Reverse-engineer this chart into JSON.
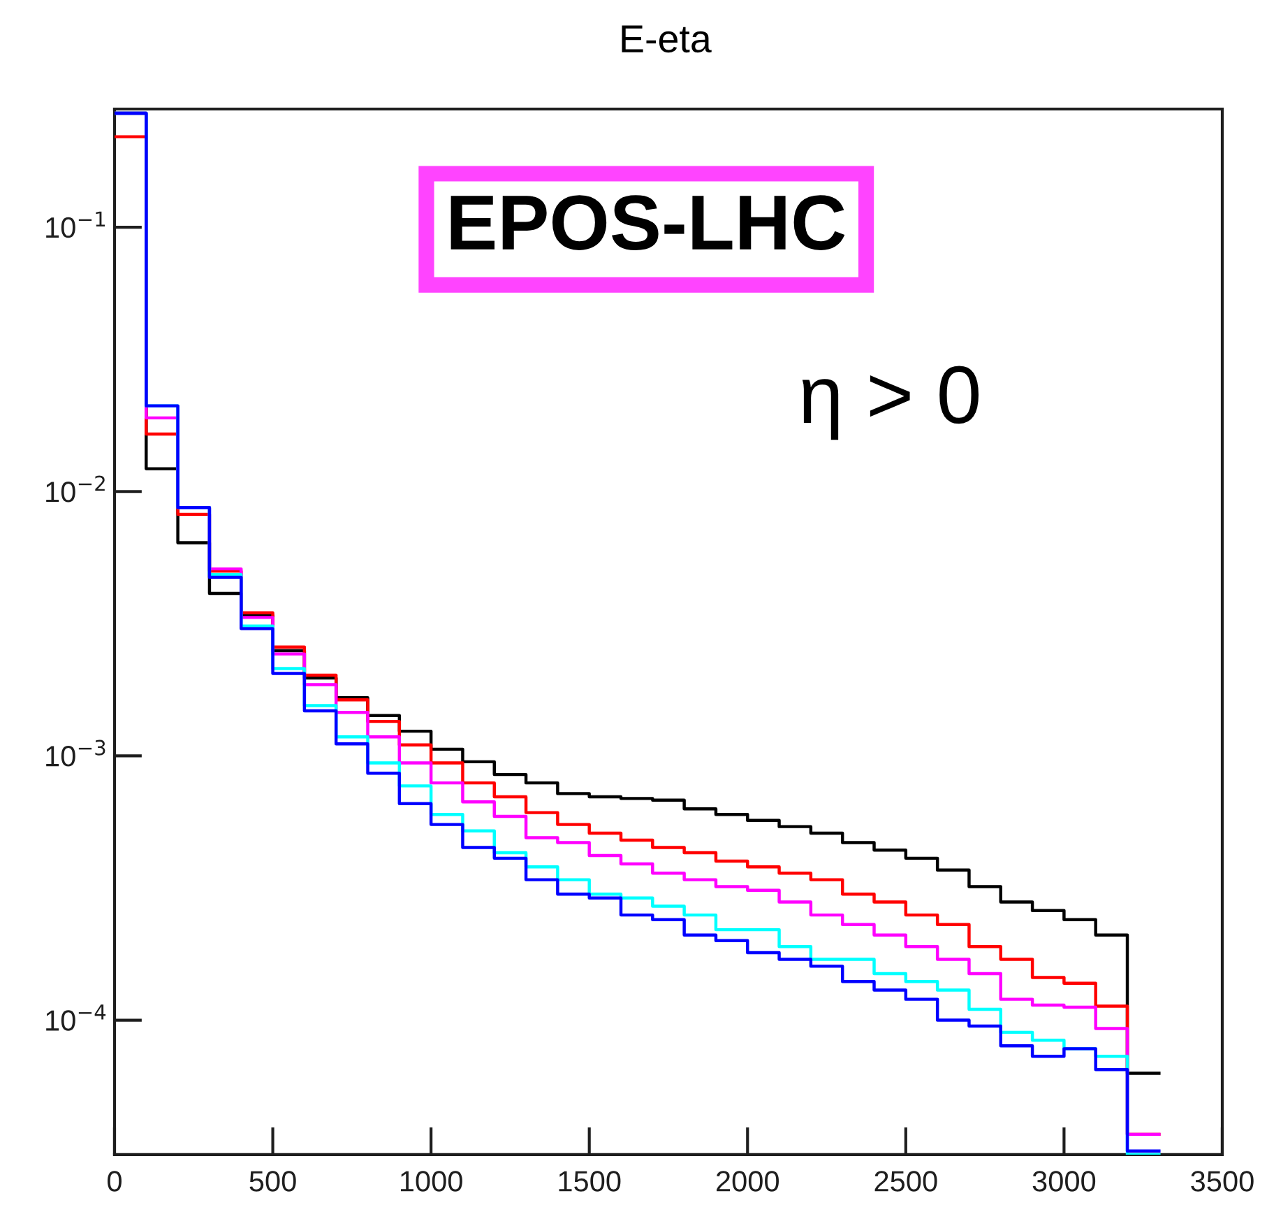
{
  "chart_data": {
    "type": "histogram",
    "title": "E-eta",
    "bins": [
      0,
      100,
      200,
      300,
      400,
      500,
      600,
      700,
      800,
      900,
      1000,
      1100,
      1200,
      1300,
      1400,
      1500,
      1600,
      1700,
      1800,
      1900,
      2000,
      2100,
      2200,
      2300,
      2400,
      2500,
      2600,
      2700,
      2800,
      2900,
      3000,
      3100,
      3200,
      3300
    ],
    "series": [
      {
        "color": "#000000",
        "values": [
          0.27,
          0.0122,
          0.0064,
          0.00412,
          0.0034,
          0.0025,
          0.00197,
          0.00166,
          0.00142,
          0.00124,
          0.00106,
          0.00095,
          0.00085,
          0.00079,
          0.00072,
          0.0007,
          0.00069,
          0.00068,
          0.00063,
          0.0006,
          0.00057,
          0.00054,
          0.00051,
          0.00047,
          0.00044,
          0.00041,
          0.00037,
          0.00032,
          0.00028,
          0.00026,
          0.00024,
          0.00021,
          6.3e-05
        ]
      },
      {
        "color": "#ff0000",
        "values": [
          0.22,
          0.0165,
          0.0082,
          0.005,
          0.00348,
          0.00258,
          0.00202,
          0.00163,
          0.00135,
          0.0011,
          0.00094,
          0.00079,
          0.0007,
          0.00061,
          0.00055,
          0.00051,
          0.00048,
          0.00045,
          0.00043,
          0.0004,
          0.00038,
          0.00036,
          0.00034,
          0.0003,
          0.00028,
          0.00025,
          0.00023,
          0.00019,
          0.00017,
          0.000145,
          0.000138,
          0.000113,
          3.7e-05
        ]
      },
      {
        "color": "#ff00ff",
        "values": [
          0.27,
          0.019,
          0.0087,
          0.0051,
          0.00334,
          0.00243,
          0.00186,
          0.00146,
          0.00118,
          0.00094,
          0.00079,
          0.00067,
          0.00059,
          0.00049,
          0.00047,
          0.00042,
          0.00039,
          0.00036,
          0.00034,
          0.00032,
          0.00031,
          0.00028,
          0.00025,
          0.00023,
          0.00021,
          0.00019,
          0.00017,
          0.00015,
          0.00012,
          0.000114,
          0.000112,
          9.3e-05,
          3.7e-05
        ]
      },
      {
        "color": "#00ffff",
        "values": [
          0.27,
          0.0211,
          0.0087,
          0.00485,
          0.0031,
          0.00214,
          0.00155,
          0.00118,
          0.00094,
          0.00077,
          0.0006,
          0.00052,
          0.00043,
          0.00038,
          0.00034,
          0.0003,
          0.00029,
          0.00027,
          0.00025,
          0.00022,
          0.00022,
          0.00019,
          0.00017,
          0.00017,
          0.00015,
          0.00014,
          0.00013,
          0.00011,
          9e-05,
          8.4e-05,
          7.8e-05,
          7.3e-05,
          3.1e-05
        ]
      },
      {
        "color": "#0000ff",
        "values": [
          0.27,
          0.0211,
          0.0087,
          0.00474,
          0.00303,
          0.00205,
          0.00148,
          0.00111,
          0.00086,
          0.00066,
          0.00055,
          0.00045,
          0.00041,
          0.00034,
          0.0003,
          0.00029,
          0.00025,
          0.00024,
          0.00021,
          0.0002,
          0.00018,
          0.00017,
          0.00016,
          0.00014,
          0.00013,
          0.00012,
          0.0001,
          9.5e-05,
          8e-05,
          7.3e-05,
          7.8e-05,
          6.5e-05,
          3.2e-05
        ]
      }
    ],
    "log": "y",
    "xlim": [
      0,
      3500
    ],
    "xticks": [
      0,
      500,
      1000,
      1500,
      2000,
      2500,
      3000,
      3500
    ],
    "ylim": [
      3.1e-05,
      0.28
    ],
    "yticks": [
      {
        "value": 0.0001,
        "label": "10$^{−4}$"
      },
      {
        "value": 0.001,
        "label": "10$^{−3}$"
      },
      {
        "value": 0.01,
        "label": "10$^{−2}$"
      },
      {
        "value": 0.1,
        "label": "10$^{−1}$"
      }
    ],
    "grid": false,
    "annotations": [
      "EPOS-LHC",
      "η > 0"
    ]
  }
}
